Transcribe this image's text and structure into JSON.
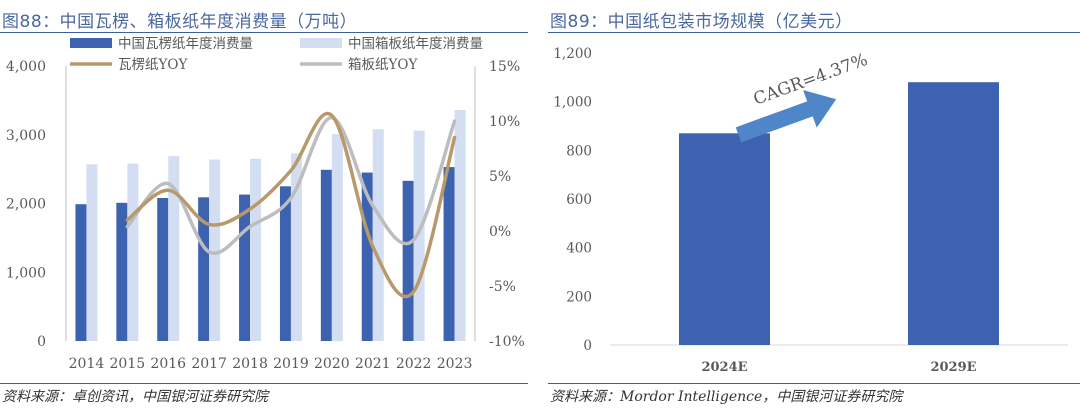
{
  "left": {
    "title": "图88：中国瓦楞、箱板纸年度消费量（万吨）",
    "source": "资料来源：卓创资讯，中国银河证券研究院"
  },
  "right": {
    "title": "图89：中国纸包装市场规模（亿美元）",
    "source": "资料来源：Mordor Intelligence，中国银河证券研究院"
  },
  "chart_data": [
    {
      "type": "bar",
      "title": "图88：中国瓦楞、箱板纸年度消费量（万吨）",
      "categories": [
        "2014",
        "2015",
        "2016",
        "2017",
        "2018",
        "2019",
        "2020",
        "2021",
        "2022",
        "2023"
      ],
      "y_ticks": [
        "0",
        "1,000",
        "2,000",
        "3,000",
        "4,000"
      ],
      "y2_ticks": [
        "-10%",
        "-5%",
        "0%",
        "5%",
        "10%",
        "15%"
      ],
      "ylim": [
        0,
        4000
      ],
      "y2lim": [
        -10,
        15
      ],
      "grid": false,
      "legend_position": "top",
      "series": [
        {
          "name": "中国瓦楞纸年度消费量",
          "kind": "bar",
          "axis": "left",
          "color": "#3d63b0",
          "values": [
            1990,
            2010,
            2080,
            2090,
            2130,
            2250,
            2490,
            2450,
            2330,
            2530
          ]
        },
        {
          "name": "中国箱板纸年度消费量",
          "kind": "bar",
          "axis": "left",
          "color": "#d3def2",
          "values": [
            2570,
            2580,
            2690,
            2640,
            2650,
            2730,
            3010,
            3080,
            3060,
            3360
          ]
        },
        {
          "name": "瓦楞纸YOY",
          "kind": "line",
          "axis": "right",
          "color": "#b8996a",
          "values": [
            null,
            1.0,
            3.7,
            0.6,
            2.0,
            5.5,
            10.5,
            -1.4,
            -5.5,
            8.5
          ]
        },
        {
          "name": "箱板纸YOY",
          "kind": "line",
          "axis": "right",
          "color": "#bdbdbd",
          "values": [
            null,
            0.4,
            4.3,
            -1.9,
            0.4,
            3.0,
            10.3,
            2.3,
            -0.8,
            10.0
          ]
        }
      ]
    },
    {
      "type": "bar",
      "title": "图89：中国纸包装市场规模（亿美元）",
      "categories": [
        "2024E",
        "2029E"
      ],
      "y_ticks": [
        "0",
        "200",
        "400",
        "600",
        "800",
        "1,000",
        "1,200"
      ],
      "ylim": [
        0,
        1200
      ],
      "grid": false,
      "series": [
        {
          "kind": "bar",
          "color": "#3d63b0",
          "values": [
            870,
            1080
          ]
        }
      ],
      "annotation": {
        "text": "CAGR=4.37%",
        "arrow_color": "#4f86c9"
      }
    }
  ]
}
